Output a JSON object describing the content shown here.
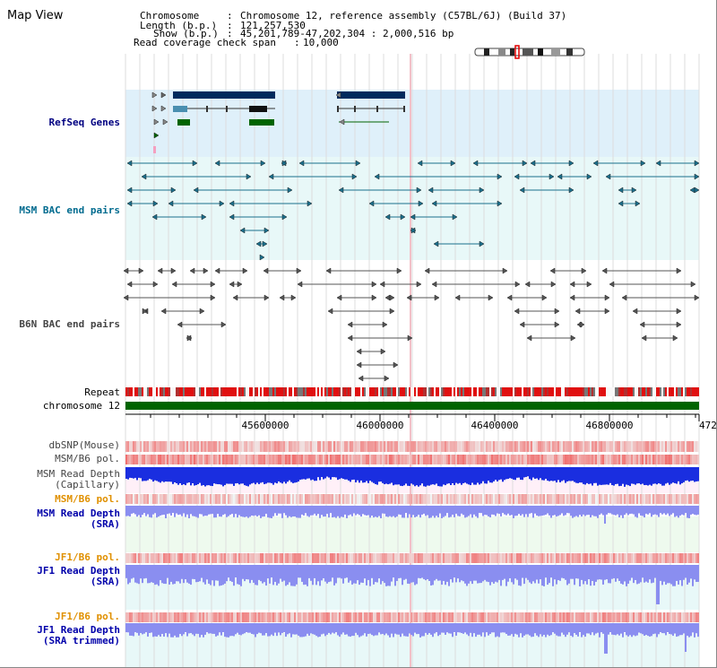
{
  "page_title": "Map View",
  "header": {
    "chromosome_label": "Chromosome",
    "chromosome_value": "Chromosome 12, reference assembly (C57BL/6J) (Build 37)",
    "length_label": "Length (b.p.)",
    "length_value": "121,257,530",
    "show_label": "Show (b.p.)",
    "show_value": "45,201,789-47,202,304 : 2,000,516 bp",
    "coverage_label": "Read coverage check span",
    "coverage_value": "10,000"
  },
  "tracks": {
    "refseq": {
      "label": "RefSeq Genes",
      "color": "#000080"
    },
    "msm_bac": {
      "label": "MSM BAC end pairs",
      "color": "#006b8f"
    },
    "b6n_bac": {
      "label": "B6N BAC end pairs",
      "color": "#444444"
    },
    "repeat": {
      "label": "Repeat",
      "color": "#000000"
    },
    "chromosome": {
      "label": "chromosome 12",
      "color": "#000000"
    },
    "dbsnp": {
      "label": "dbSNP(Mouse)",
      "color": "#444444"
    },
    "msm_b6_pol_1": {
      "label": "MSM/B6 pol.",
      "color": "#444444"
    },
    "msm_depth_cap": {
      "label_1": "MSM Read Depth",
      "label_2": "(Capillary)",
      "color": "#444444"
    },
    "msm_b6_pol_2": {
      "label": "MSM/B6 pol.",
      "color": "#e09000"
    },
    "msm_depth_sra": {
      "label_1": "MSM Read Depth",
      "label_2": "(SRA)",
      "color": "#0000aa"
    },
    "jf1_b6_pol_1": {
      "label": "JF1/B6 pol.",
      "color": "#e09000"
    },
    "jf1_depth_sra": {
      "label_1": "JF1 Read Depth",
      "label_2": "(SRA)",
      "color": "#0000aa"
    },
    "jf1_b6_pol_2": {
      "label": "JF1/B6 pol.",
      "color": "#e09000"
    },
    "jf1_depth_trim": {
      "label_1": "JF1 Read Depth",
      "label_2": "(SRA trimmed)",
      "color": "#0000aa"
    }
  },
  "axis": {
    "ticks": [
      "45600000",
      "46000000",
      "46400000",
      "46800000",
      "472"
    ]
  },
  "colors": {
    "refseq_bg": "#dff0fa",
    "msm_bac_bg": "#e8f8f8",
    "gene_dark": "#002a5c",
    "gene_mid": "#4a8fb0",
    "gene_green": "#006400",
    "msm_feature": "#1a6f8c",
    "b6n_feature": "#555555",
    "repeat_red": "#e01010",
    "chromosome_green": "#006400",
    "depth_blue": "#1a2ee0",
    "depth_light_blue": "#8a8ef0",
    "pol_red": "#f07070"
  }
}
